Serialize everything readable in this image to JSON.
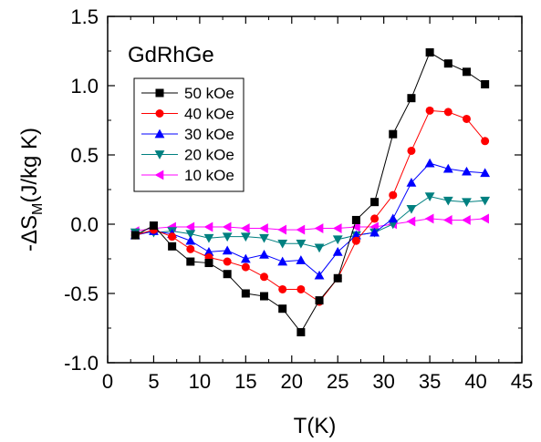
{
  "chart_data": {
    "type": "line",
    "title": "GdRhGe",
    "xlabel": "T(K)",
    "ylabel": {
      "prefix": "-ΔS",
      "subscript": "M",
      "suffix": "(J/kg K)"
    },
    "xlim": [
      0,
      45
    ],
    "ylim": [
      -1.0,
      1.5
    ],
    "xticks": [
      "0",
      "5",
      "10",
      "15",
      "20",
      "25",
      "30",
      "35",
      "40",
      "45"
    ],
    "yticks": [
      "-1.0",
      "-0.5",
      "0.0",
      "0.5",
      "1.0",
      "1.5"
    ],
    "grid": false,
    "legend_position": "upper-left",
    "x": [
      3,
      5,
      7,
      9,
      11,
      13,
      15,
      17,
      19,
      21,
      23,
      25,
      27,
      29,
      31,
      33,
      35,
      37,
      39,
      41
    ],
    "series": [
      {
        "name": "50 kOe",
        "color": "#000000",
        "marker": "square",
        "values": [
          -0.08,
          -0.01,
          -0.16,
          -0.27,
          -0.28,
          -0.36,
          -0.5,
          -0.52,
          -0.61,
          -0.78,
          -0.55,
          -0.39,
          0.03,
          0.16,
          0.65,
          0.91,
          1.24,
          1.16,
          1.1,
          1.01
        ]
      },
      {
        "name": "40 kOe",
        "color": "#ff0000",
        "marker": "circle",
        "values": [
          -0.08,
          -0.04,
          -0.09,
          -0.18,
          -0.24,
          -0.27,
          -0.31,
          -0.38,
          -0.47,
          -0.47,
          -0.56,
          -0.39,
          -0.12,
          0.04,
          0.21,
          0.53,
          0.82,
          0.81,
          0.76,
          0.6
        ]
      },
      {
        "name": "30 kOe",
        "color": "#0000ff",
        "marker": "triangle-up",
        "values": [
          -0.08,
          -0.05,
          -0.07,
          -0.12,
          -0.2,
          -0.19,
          -0.25,
          -0.22,
          -0.27,
          -0.26,
          -0.37,
          -0.2,
          -0.08,
          -0.06,
          0.04,
          0.3,
          0.44,
          0.4,
          0.38,
          0.37
        ]
      },
      {
        "name": "20 kOe",
        "color": "#008080",
        "marker": "triangle-down",
        "values": [
          -0.06,
          -0.06,
          -0.05,
          -0.07,
          -0.1,
          -0.09,
          -0.09,
          -0.1,
          -0.14,
          -0.14,
          -0.17,
          -0.11,
          -0.08,
          -0.06,
          0.0,
          0.11,
          0.2,
          0.17,
          0.16,
          0.17
        ]
      },
      {
        "name": "10 kOe",
        "color": "#ff00ff",
        "marker": "triangle-left",
        "values": [
          -0.05,
          -0.03,
          -0.02,
          -0.02,
          -0.02,
          -0.02,
          -0.03,
          -0.03,
          -0.04,
          -0.04,
          -0.03,
          -0.03,
          -0.02,
          -0.02,
          0.0,
          0.02,
          0.04,
          0.03,
          0.03,
          0.04
        ]
      }
    ]
  }
}
